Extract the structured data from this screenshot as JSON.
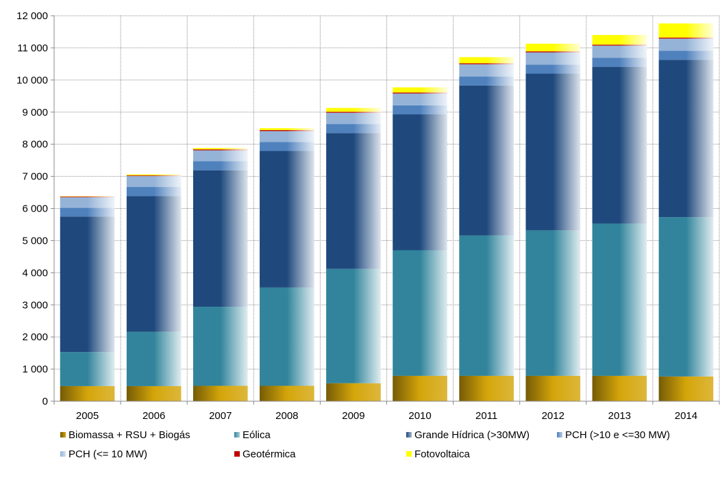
{
  "chart_data": {
    "type": "bar",
    "stacked": true,
    "title": "",
    "xlabel": "",
    "ylabel": "",
    "ylim": [
      0,
      12000
    ],
    "y_ticks": [
      "0",
      "1 000",
      "2 000",
      "3 000",
      "4 000",
      "5 000",
      "6 000",
      "7 000",
      "8 000",
      "9 000",
      "10 000",
      "11 000",
      "12 000"
    ],
    "grid": true,
    "legend_position": "bottom",
    "categories": [
      "2005",
      "2006",
      "2007",
      "2008",
      "2009",
      "2010",
      "2011",
      "2012",
      "2013",
      "2014"
    ],
    "series": [
      {
        "name": "Biomassa + RSU + Biogás",
        "color": "#D4A50A",
        "values": [
          470,
          470,
          480,
          480,
          560,
          790,
          790,
          790,
          790,
          770
        ]
      },
      {
        "name": "Eólica",
        "color": "#31849B",
        "values": [
          1060,
          1690,
          2460,
          3060,
          3560,
          3910,
          4370,
          4530,
          4740,
          4960
        ]
      },
      {
        "name": "Grande Hídrica (>30MW)",
        "color": "#1F497D",
        "values": [
          4220,
          4230,
          4250,
          4250,
          4230,
          4230,
          4670,
          4880,
          4880,
          4900
        ]
      },
      {
        "name": "PCH (>10 e <=30 MW)",
        "color": "#4F81BD",
        "values": [
          270,
          280,
          280,
          280,
          280,
          280,
          280,
          280,
          280,
          280
        ]
      },
      {
        "name": "PCH (<= 10 MW)",
        "color": "#95B3D7",
        "values": [
          330,
          340,
          340,
          340,
          350,
          370,
          380,
          380,
          380,
          380
        ]
      },
      {
        "name": "Geotérmica",
        "color": "#C00000",
        "values": [
          20,
          20,
          30,
          30,
          30,
          30,
          30,
          30,
          30,
          30
        ]
      },
      {
        "name": "Fotovoltaica",
        "color": "#FFFF00",
        "values": [
          10,
          30,
          40,
          60,
          120,
          160,
          190,
          240,
          300,
          440
        ]
      }
    ]
  }
}
